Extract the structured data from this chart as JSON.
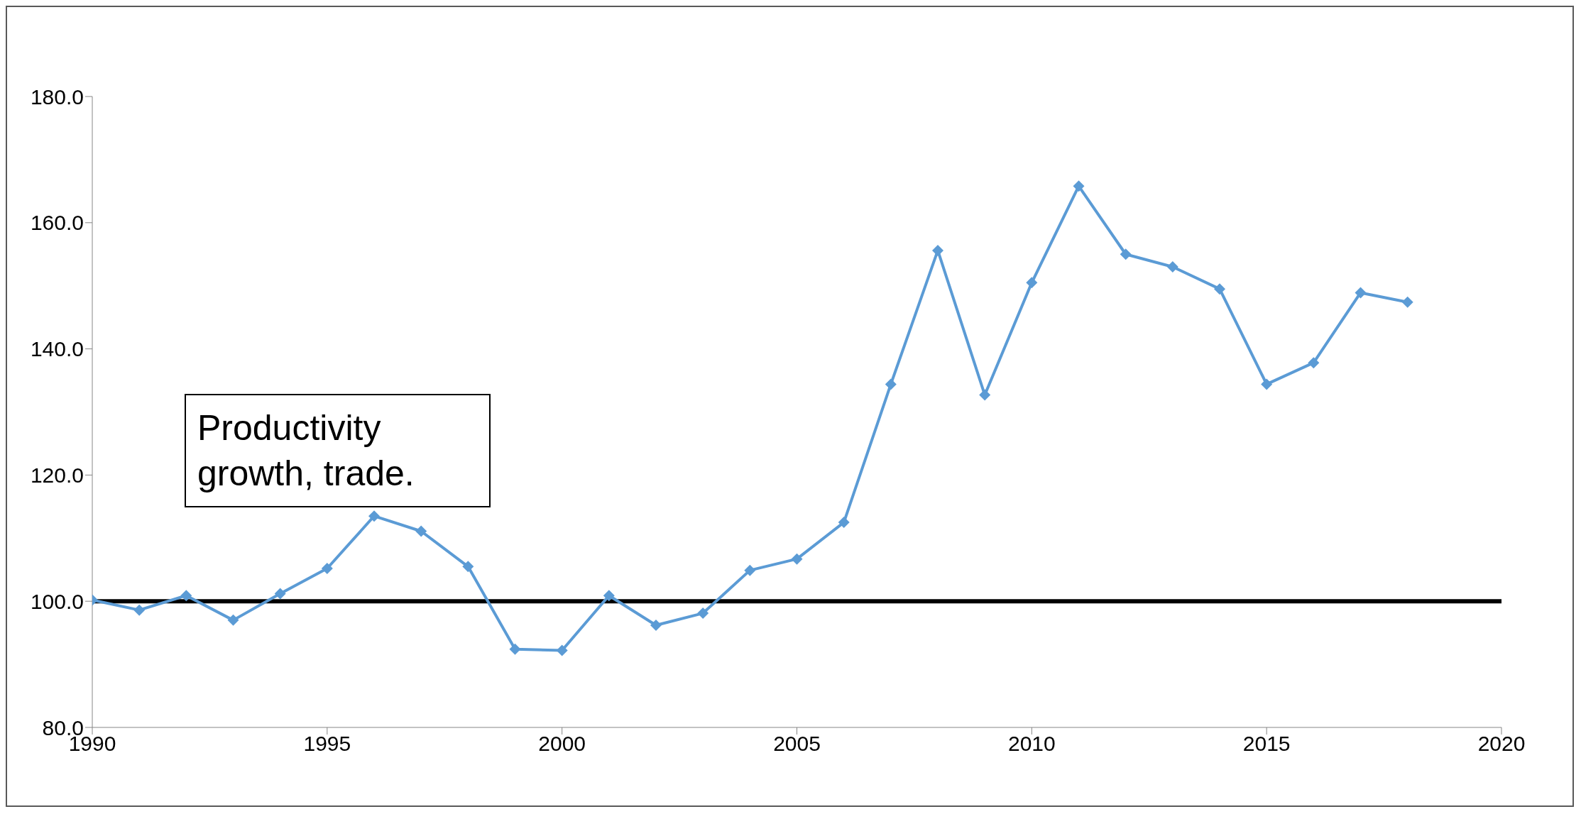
{
  "chart_data": {
    "type": "line",
    "x": [
      1990,
      1991,
      1992,
      1993,
      1994,
      1995,
      1996,
      1997,
      1998,
      1999,
      2000,
      2001,
      2002,
      2003,
      2004,
      2005,
      2006,
      2007,
      2008,
      2009,
      2010,
      2011,
      2012,
      2013,
      2014,
      2015,
      2016,
      2017,
      2018
    ],
    "series": [
      {
        "color": "#5b9bd5",
        "values": [
          100.2,
          98.6,
          100.9,
          97.0,
          101.2,
          105.2,
          113.5,
          111.1,
          105.5,
          92.4,
          92.2,
          100.9,
          96.2,
          98.1,
          104.9,
          106.7,
          112.5,
          134.4,
          155.6,
          132.7,
          150.5,
          165.8,
          155.0,
          153.0,
          149.5,
          134.4,
          137.8,
          148.9,
          147.4
        ]
      }
    ],
    "xlim": [
      1990,
      2020
    ],
    "xticks": [
      1990,
      1995,
      2000,
      2005,
      2010,
      2015,
      2020
    ],
    "ylim": [
      80,
      180
    ],
    "yticks": [
      {
        "value": 80,
        "label": "80.0"
      },
      {
        "value": 100,
        "label": "100.0"
      },
      {
        "value": 120,
        "label": "120.0"
      },
      {
        "value": 140,
        "label": "140.0"
      },
      {
        "value": 160,
        "label": "160.0"
      },
      {
        "value": 180,
        "label": "180.0"
      }
    ],
    "ref_lines": [
      {
        "axis": "y",
        "value": 100,
        "color": "#000000"
      }
    ],
    "annotations": [
      "Productivity growth, trade."
    ],
    "marker": "diamond",
    "line_style": "solid",
    "grid": false,
    "legend": false
  }
}
